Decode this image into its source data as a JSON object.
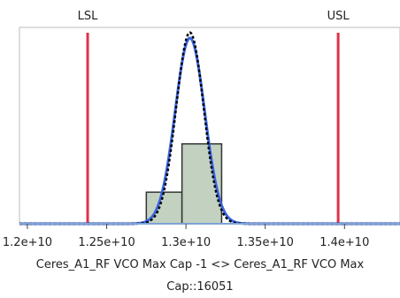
{
  "chart_data": {
    "type": "bar",
    "title": "",
    "xlabel": "Ceres_A1_RF VCO Max Cap  -1 <> Ceres_A1_RF VCO Max Cap::16051",
    "xlabel_lines": [
      "Ceres_A1_RF VCO Max Cap  -1 <> Ceres_A1_RF VCO Max",
      "Cap::16051"
    ],
    "ylabel": "",
    "xlim": [
      11950000000,
      14350000000
    ],
    "ylim": [
      0,
      1
    ],
    "grid": false,
    "x_ticks": [
      {
        "value": 12000000000,
        "label": "1.2e+10"
      },
      {
        "value": 12500000000,
        "label": "1.25e+10"
      },
      {
        "value": 13000000000,
        "label": "1.3e+10"
      },
      {
        "value": 13500000000,
        "label": "1.35e+10"
      },
      {
        "value": 14000000000,
        "label": "1.4e+10"
      }
    ],
    "histogram": {
      "bins": [
        {
          "start": 12750000000,
          "end": 12975000000,
          "value": 0.17
        },
        {
          "start": 12975000000,
          "end": 13225000000,
          "value": 0.43
        }
      ],
      "fill": "#c3d1c1",
      "stroke": "#333333"
    },
    "density_curves": [
      {
        "kind": "normal-fit",
        "mean": 13025000000,
        "sd": 93000000,
        "peak": 1.0,
        "color": "#3a66e0",
        "style": "solid"
      },
      {
        "kind": "density",
        "mean": 13025000000,
        "sd": 87000000,
        "peak": 1.03,
        "color": "#000000",
        "style": "dotted"
      }
    ],
    "spec_limits": [
      {
        "label": "LSL",
        "value": 12380000000,
        "color": "#e0314b"
      },
      {
        "label": "USL",
        "value": 13960000000,
        "color": "#e0314b"
      }
    ],
    "axis_color": "#bbbbbb",
    "baseline_color": "#7ea2d8"
  }
}
